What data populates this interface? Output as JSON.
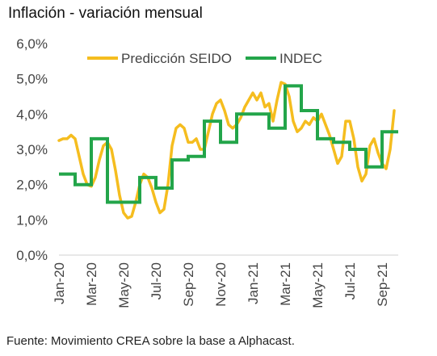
{
  "chart_data": {
    "type": "line",
    "title": "Inflación  - variación mensual",
    "source": "Fuente: Movimiento CREA sobre la base a Alphacast.",
    "x_start": "Jan-20",
    "x_end": "Oct-21",
    "x_tick_labels": [
      "Jan-20",
      "Mar-20",
      "May-20",
      "Jul-20",
      "Sep-20",
      "Nov-20",
      "Jan-21",
      "Mar-21",
      "May-21",
      "Jul-21",
      "Sep-21"
    ],
    "y_tick_labels": [
      "0,0%",
      "1,0%",
      "2,0%",
      "3,0%",
      "4,0%",
      "5,0%",
      "6,0%"
    ],
    "ylim": [
      0,
      6
    ],
    "grid": false,
    "legend": "top",
    "series": [
      {
        "name": "Predicción SEIDO",
        "color": "#F5BD1F",
        "points": [
          [
            "Jan-20",
            3.25
          ],
          [
            "Jan-20",
            3.3
          ],
          [
            "Jan-20",
            3.3
          ],
          [
            "Jan-20",
            3.4
          ],
          [
            "Feb-20",
            3.3
          ],
          [
            "Feb-20",
            2.8
          ],
          [
            "Feb-20",
            2.3
          ],
          [
            "Feb-20",
            2.0
          ],
          [
            "Mar-20",
            1.95
          ],
          [
            "Mar-20",
            2.2
          ],
          [
            "Mar-20",
            2.7
          ],
          [
            "Mar-20",
            3.1
          ],
          [
            "Apr-20",
            3.2
          ],
          [
            "Apr-20",
            3.0
          ],
          [
            "Apr-20",
            2.4
          ],
          [
            "Apr-20",
            1.7
          ],
          [
            "May-20",
            1.2
          ],
          [
            "May-20",
            1.05
          ],
          [
            "May-20",
            1.1
          ],
          [
            "May-20",
            1.5
          ],
          [
            "Jun-20",
            2.0
          ],
          [
            "Jun-20",
            2.3
          ],
          [
            "Jun-20",
            2.2
          ],
          [
            "Jun-20",
            1.9
          ],
          [
            "Jul-20",
            1.5
          ],
          [
            "Jul-20",
            1.2
          ],
          [
            "Jul-20",
            1.3
          ],
          [
            "Jul-20",
            2.0
          ],
          [
            "Aug-20",
            3.1
          ],
          [
            "Aug-20",
            3.6
          ],
          [
            "Aug-20",
            3.7
          ],
          [
            "Aug-20",
            3.6
          ],
          [
            "Sep-20",
            3.2
          ],
          [
            "Sep-20",
            3.2
          ],
          [
            "Sep-20",
            3.3
          ],
          [
            "Sep-20",
            3.0
          ],
          [
            "Oct-20",
            3.0
          ],
          [
            "Oct-20",
            3.5
          ],
          [
            "Oct-20",
            4.0
          ],
          [
            "Oct-20",
            4.3
          ],
          [
            "Nov-20",
            4.4
          ],
          [
            "Nov-20",
            4.1
          ],
          [
            "Nov-20",
            3.7
          ],
          [
            "Nov-20",
            3.6
          ],
          [
            "Dec-20",
            3.7
          ],
          [
            "Dec-20",
            3.9
          ],
          [
            "Dec-20",
            4.2
          ],
          [
            "Dec-20",
            4.4
          ],
          [
            "Jan-21",
            4.6
          ],
          [
            "Jan-21",
            4.4
          ],
          [
            "Jan-21",
            4.6
          ],
          [
            "Jan-21",
            4.2
          ],
          [
            "Feb-21",
            4.3
          ],
          [
            "Feb-21",
            3.8
          ],
          [
            "Feb-21",
            4.4
          ],
          [
            "Feb-21",
            4.9
          ],
          [
            "Mar-21",
            4.85
          ],
          [
            "Mar-21",
            4.5
          ],
          [
            "Mar-21",
            3.8
          ],
          [
            "Mar-21",
            3.5
          ],
          [
            "Apr-21",
            3.6
          ],
          [
            "Apr-21",
            3.8
          ],
          [
            "Apr-21",
            3.7
          ],
          [
            "Apr-21",
            3.9
          ],
          [
            "May-21",
            3.8
          ],
          [
            "May-21",
            4.0
          ],
          [
            "May-21",
            3.7
          ],
          [
            "May-21",
            3.4
          ],
          [
            "Jun-21",
            3.0
          ],
          [
            "Jun-21",
            2.6
          ],
          [
            "Jun-21",
            2.8
          ],
          [
            "Jun-21",
            3.8
          ],
          [
            "Jul-21",
            3.8
          ],
          [
            "Jul-21",
            3.3
          ],
          [
            "Jul-21",
            2.5
          ],
          [
            "Jul-21",
            2.1
          ],
          [
            "Aug-21",
            2.3
          ],
          [
            "Aug-21",
            3.1
          ],
          [
            "Aug-21",
            3.3
          ],
          [
            "Aug-21",
            2.9
          ],
          [
            "Sep-21",
            2.6
          ],
          [
            "Sep-21",
            2.45
          ],
          [
            "Sep-21",
            3.0
          ],
          [
            "Sep-21",
            4.1
          ]
        ]
      },
      {
        "name": "INDEC",
        "color": "#23A54A",
        "points": [
          [
            "Jan-20",
            2.3
          ],
          [
            "Feb-20",
            2.0
          ],
          [
            "Mar-20",
            3.3
          ],
          [
            "Apr-20",
            1.5
          ],
          [
            "May-20",
            1.5
          ],
          [
            "Jun-20",
            2.2
          ],
          [
            "Jul-20",
            1.9
          ],
          [
            "Aug-20",
            2.7
          ],
          [
            "Sep-20",
            2.8
          ],
          [
            "Oct-20",
            3.8
          ],
          [
            "Nov-20",
            3.2
          ],
          [
            "Dec-20",
            4.0
          ],
          [
            "Jan-21",
            4.0
          ],
          [
            "Feb-21",
            3.6
          ],
          [
            "Mar-21",
            4.8
          ],
          [
            "Apr-21",
            4.1
          ],
          [
            "May-21",
            3.3
          ],
          [
            "Jun-21",
            3.2
          ],
          [
            "Jul-21",
            3.0
          ],
          [
            "Aug-21",
            2.5
          ],
          [
            "Sep-21",
            3.5
          ]
        ]
      }
    ]
  }
}
